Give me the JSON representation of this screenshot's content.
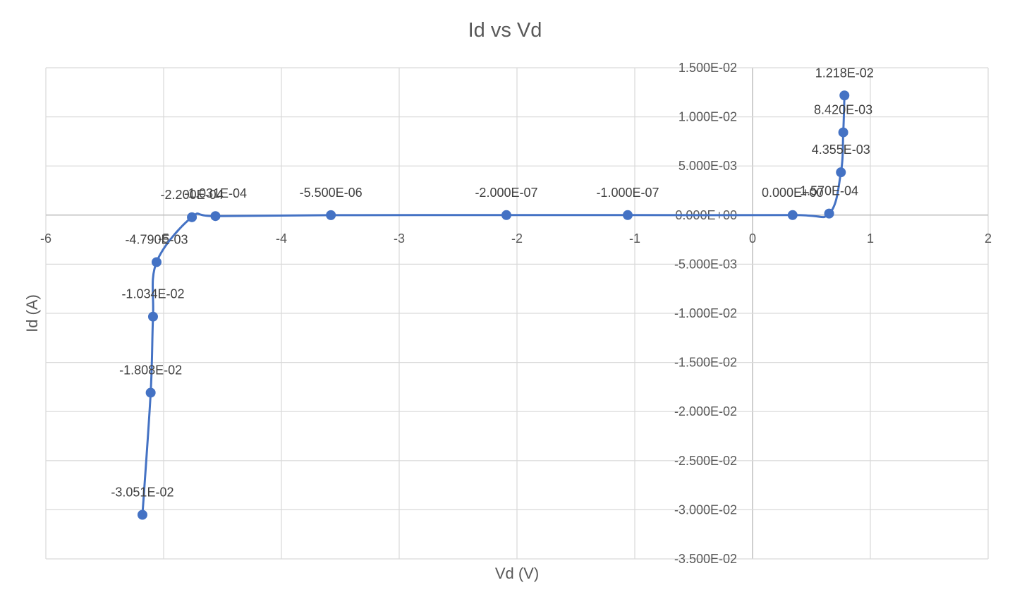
{
  "chart_data": {
    "type": "scatter",
    "title": "Id vs Vd",
    "xlabel": "Vd (V)",
    "ylabel": "Id (A)",
    "xlim": [
      -6,
      2
    ],
    "ylim": [
      -0.035,
      0.015
    ],
    "x_ticks": [
      -6,
      -5,
      -4,
      -3,
      -2,
      -1,
      0,
      1,
      2
    ],
    "x_tick_labels": [
      "-6",
      "-5",
      "-4",
      "-3",
      "-2",
      "-1",
      "0",
      "1",
      "2"
    ],
    "y_ticks": [
      0.015,
      0.01,
      0.005,
      0,
      -0.005,
      -0.01,
      -0.015,
      -0.02,
      -0.025,
      -0.03,
      -0.035
    ],
    "y_tick_labels": [
      "1.500E-02",
      "1.000E-02",
      "5.000E-03",
      "0.000E+00",
      "-5.000E-03",
      "-1.000E-02",
      "-1.500E-02",
      "-2.000E-02",
      "-2.500E-02",
      "-3.000E-02",
      "-3.500E-02"
    ],
    "grid": true,
    "smooth": true,
    "series_color": "#4472C4",
    "series": [
      {
        "x": [
          -5.18,
          -5.11,
          -5.09,
          -5.06,
          -4.76,
          -4.56,
          -3.58,
          -2.09,
          -1.06,
          0.34,
          0.65,
          0.75,
          0.77,
          0.78
        ],
        "y": [
          -0.03051,
          -0.01808,
          -0.01034,
          -0.00479,
          -0.00022,
          -0.000103,
          -5.5e-06,
          -2e-07,
          -1e-07,
          0,
          0.000157,
          0.004355,
          0.00842,
          0.01218
        ],
        "labels": [
          "-3.051E-02",
          "-1.808E-02",
          "-1.034E-02",
          "-4.790E-03",
          "-2.200E-04",
          "-1.031E-04",
          "-5.500E-06",
          "-2.000E-07",
          "-1.000E-07",
          "0.000E+00",
          "1.570E-04",
          "4.355E-03",
          "8.420E-03",
          "1.218E-02"
        ]
      }
    ]
  }
}
